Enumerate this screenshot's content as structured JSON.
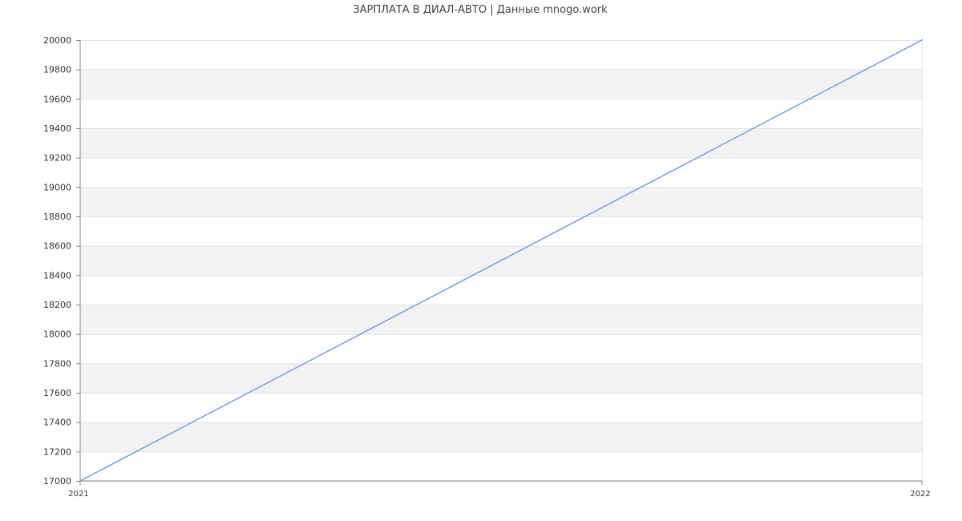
{
  "chart_data": {
    "type": "line",
    "title": "ЗАРПЛАТА В  ДИАЛ-АВТО | Данные mnogo.work",
    "xlabel": "",
    "ylabel": "",
    "x": [
      "2021",
      "2022"
    ],
    "series": [
      {
        "values": [
          17000,
          20000
        ],
        "color": "#6f9cf7"
      }
    ],
    "ylim": [
      17000,
      20000
    ],
    "y_ticks": [
      17000,
      17200,
      17400,
      17600,
      17800,
      18000,
      18200,
      18400,
      18600,
      18800,
      19000,
      19200,
      19400,
      19600,
      19800,
      20000
    ],
    "x_ticks": [
      "2021",
      "2022"
    ],
    "grid": true,
    "band_color": "#f3f3f3",
    "legend": "none"
  }
}
